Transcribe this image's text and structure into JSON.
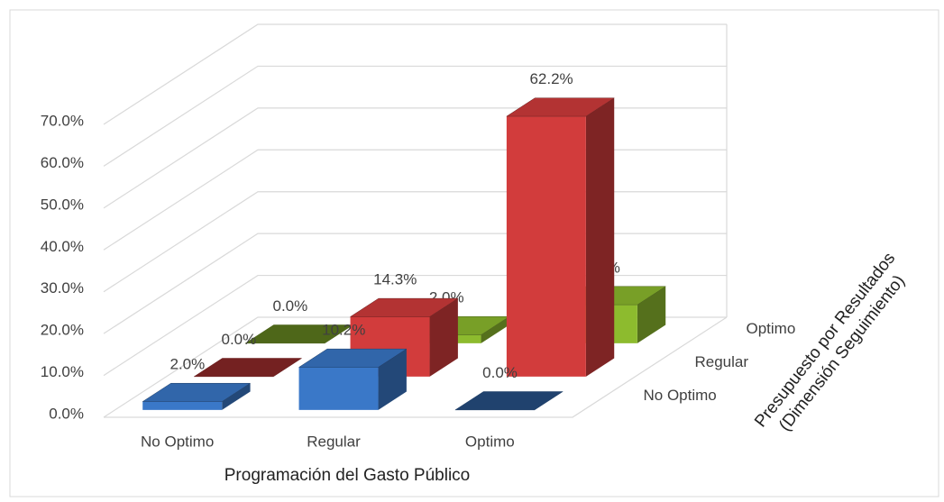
{
  "chart_data": {
    "type": "bar3d",
    "categories": [
      "No Optimo",
      "Regular",
      "Optimo"
    ],
    "series": [
      {
        "name": "No Optimo",
        "color": "#3a78c8",
        "values": [
          2.0,
          10.2,
          0.0
        ],
        "value_labels": [
          "2.0%",
          "10.2%",
          "0.0%"
        ]
      },
      {
        "name": "Regular",
        "color": "#d23c3c",
        "values": [
          0.0,
          14.3,
          62.2
        ],
        "value_labels": [
          "0.0%",
          "14.3%",
          "62.2%"
        ]
      },
      {
        "name": "Optimo",
        "color": "#8dbb2e",
        "values": [
          0.0,
          2.0,
          9.2
        ],
        "value_labels": [
          "0.0%",
          "2.0%",
          "9.2%"
        ]
      }
    ],
    "ylim": [
      0,
      70
    ],
    "yticks": [
      {
        "value": 0,
        "label": "0.0%"
      },
      {
        "value": 10,
        "label": "10.0%"
      },
      {
        "value": 20,
        "label": "20.0%"
      },
      {
        "value": 30,
        "label": "30.0%"
      },
      {
        "value": 40,
        "label": "40.0%"
      },
      {
        "value": 50,
        "label": "50.0%"
      },
      {
        "value": 60,
        "label": "60.0%"
      },
      {
        "value": 70,
        "label": "70.0%"
      }
    ],
    "grid": true,
    "x_label": "Programación del Gasto Público",
    "z_label": [
      "Presupuesto por Resultados",
      "(Dimensión Seguimiento)"
    ]
  }
}
